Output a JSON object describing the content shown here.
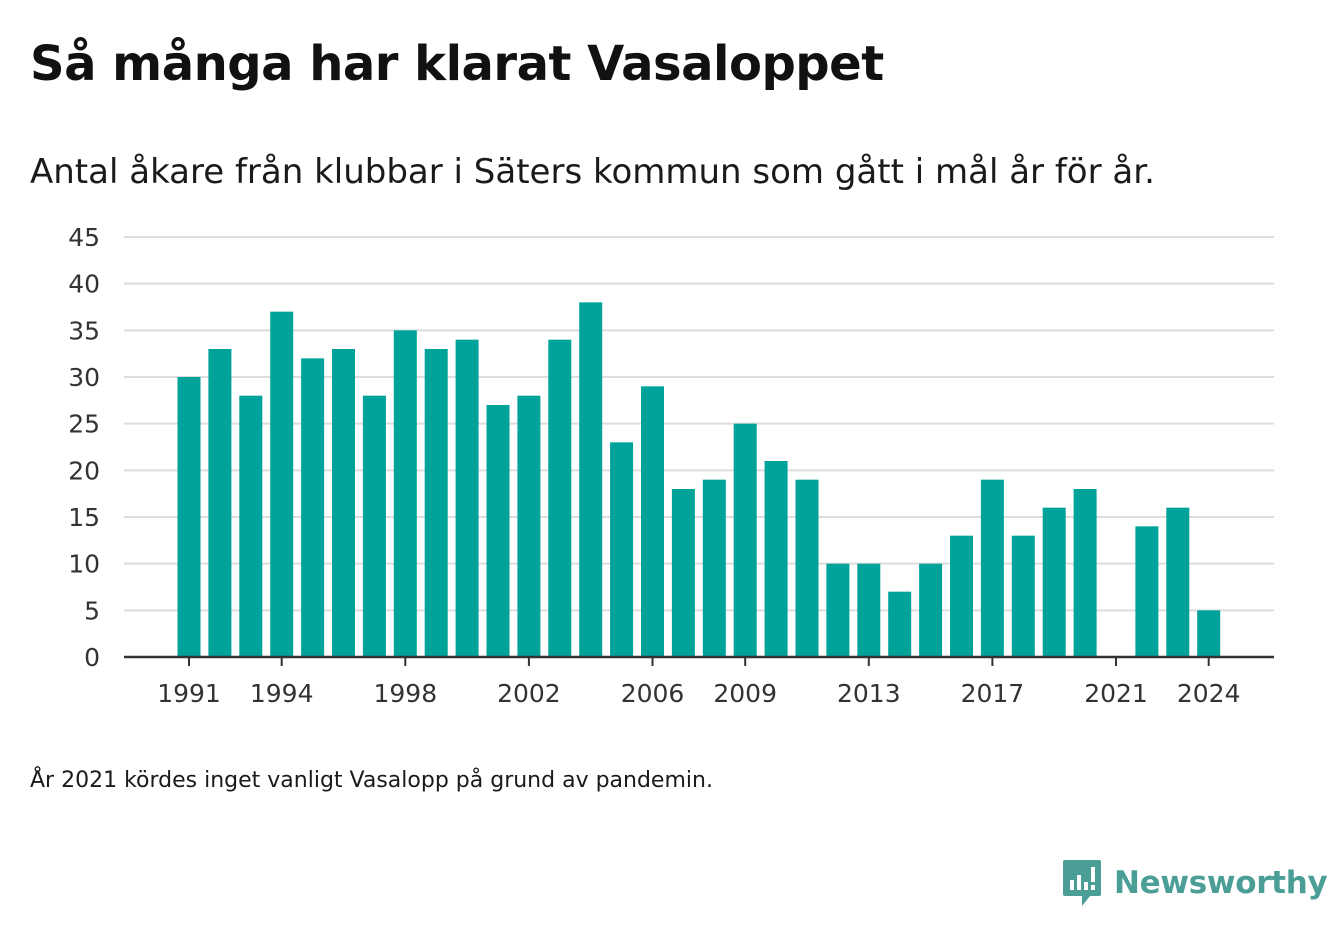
{
  "title": "Så många har klarat Vasaloppet",
  "subtitle": "Antal åkare från klubbar i Säters kommun som gått i mål år för år.",
  "footnote": "År 2021 kördes inget vanligt Vasalopp på grund av pandemin.",
  "brand": {
    "name": "Newsworthy",
    "icon": "newsworthy-logo-icon",
    "color": "#4a9e96"
  },
  "colors": {
    "bar": "#00a39a",
    "grid": "#dddddd",
    "axis": "#333333"
  },
  "chart_data": {
    "type": "bar",
    "title": "Så många har klarat Vasaloppet",
    "subtitle": "Antal åkare från klubbar i Säters kommun som gått i mål år för år.",
    "xlabel": "",
    "ylabel": "",
    "ylim": [
      0,
      45
    ],
    "yticks": [
      0,
      5,
      10,
      15,
      20,
      25,
      30,
      35,
      40,
      45
    ],
    "xticks": [
      1991,
      1994,
      1998,
      2002,
      2006,
      2009,
      2013,
      2017,
      2021,
      2024
    ],
    "grid": true,
    "categories": [
      1991,
      1992,
      1993,
      1994,
      1995,
      1996,
      1997,
      1998,
      1999,
      2000,
      2001,
      2002,
      2003,
      2004,
      2005,
      2006,
      2007,
      2008,
      2009,
      2010,
      2011,
      2012,
      2013,
      2014,
      2015,
      2016,
      2017,
      2018,
      2019,
      2020,
      2021,
      2022,
      2023,
      2024
    ],
    "values": [
      30,
      33,
      28,
      37,
      32,
      33,
      28,
      35,
      33,
      34,
      27,
      28,
      34,
      38,
      23,
      29,
      18,
      19,
      25,
      21,
      19,
      10,
      10,
      7,
      10,
      13,
      19,
      13,
      16,
      18,
      null,
      14,
      16,
      5
    ]
  }
}
